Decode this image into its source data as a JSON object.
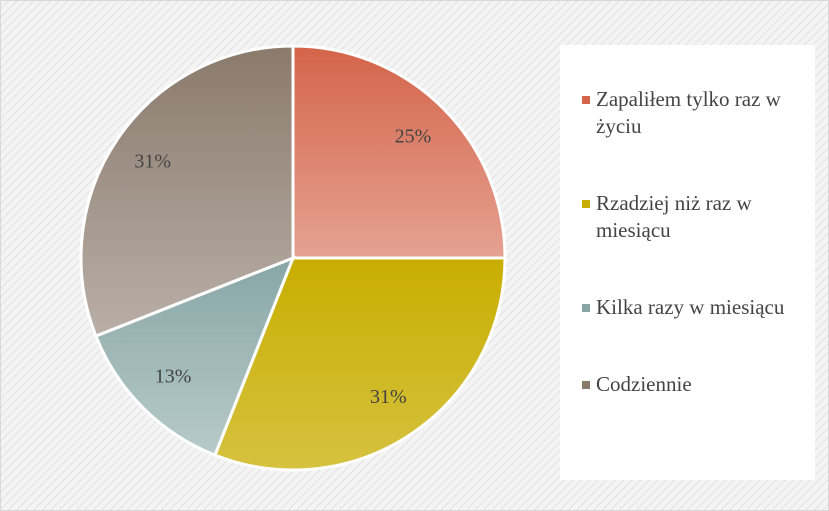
{
  "chart_data": {
    "type": "pie",
    "categories": [
      "Zapaliłem tylko raz w życiu",
      "Rzadziej niż raz w miesiącu",
      "Kilka razy w miesiącu",
      "Codziennie"
    ],
    "values": [
      25,
      31,
      13,
      31
    ],
    "value_labels": [
      "25%",
      "31%",
      "13%",
      "31%"
    ],
    "colors": [
      "#d4644a",
      "#c8ae00",
      "#88a6a6",
      "#8a7a6c"
    ],
    "legend": "right"
  }
}
